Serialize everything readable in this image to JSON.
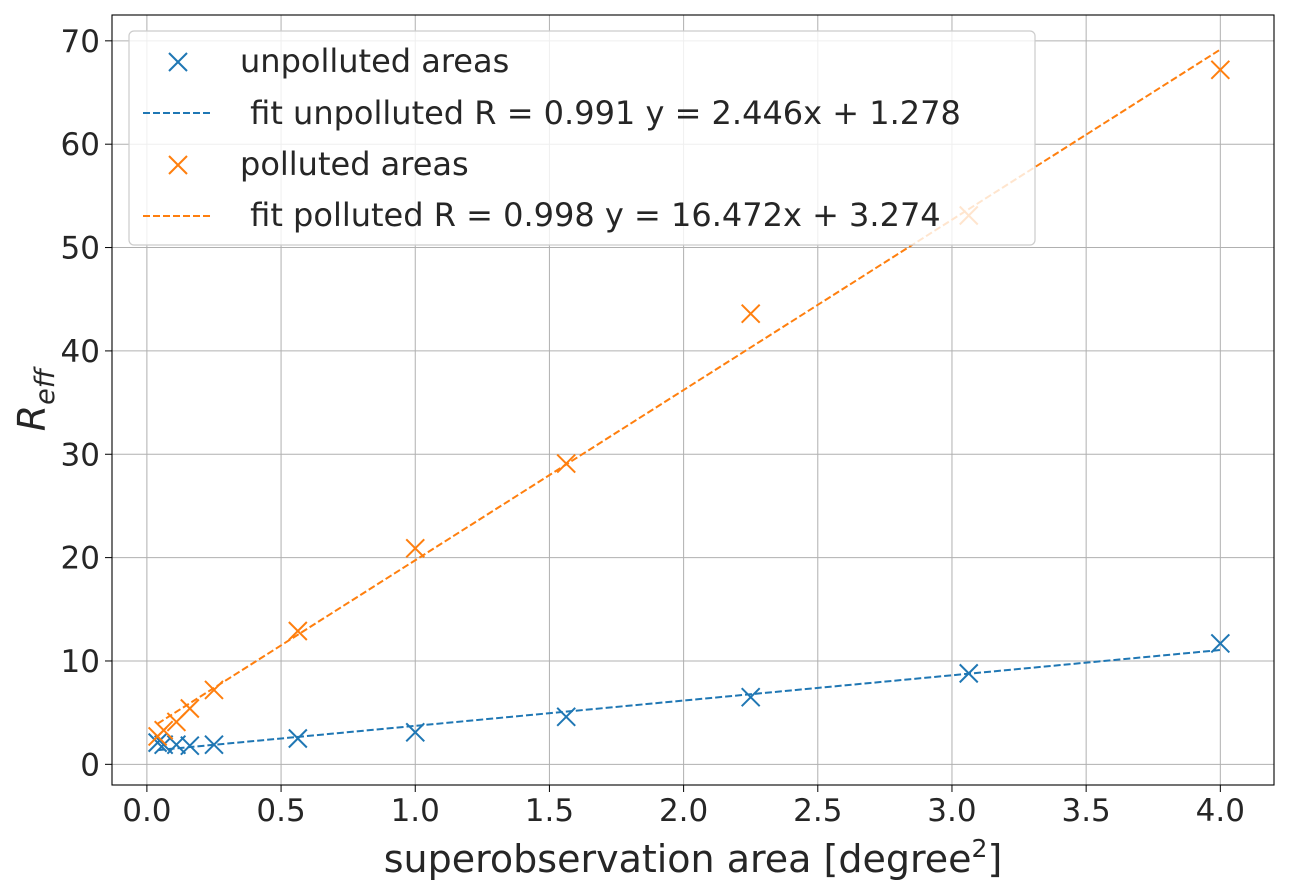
{
  "chart_data": {
    "type": "scatter",
    "xlabel": "superobservation area [degree",
    "xlabel_superscript": "2",
    "xlabel_suffix": "]",
    "ylabel": "R",
    "ylabel_subscript": "eff",
    "xlim": [
      -0.13,
      4.2
    ],
    "ylim": [
      -2,
      72.5
    ],
    "x_ticks": [
      0.0,
      0.5,
      1.0,
      1.5,
      2.0,
      2.5,
      3.0,
      3.5,
      4.0
    ],
    "x_tick_labels": [
      "0.0",
      "0.5",
      "1.0",
      "1.5",
      "2.0",
      "2.5",
      "3.0",
      "3.5",
      "4.0"
    ],
    "y_ticks": [
      0,
      10,
      20,
      30,
      40,
      50,
      60,
      70
    ],
    "y_tick_labels": [
      "0",
      "10",
      "20",
      "30",
      "40",
      "50",
      "60",
      "70"
    ],
    "grid": true,
    "legend_position": "top-left",
    "series": [
      {
        "name": "unpolluted areas",
        "kind": "scatter",
        "marker": "x",
        "color": "#1f77b4",
        "x": [
          0.04,
          0.0625,
          0.11,
          0.16,
          0.25,
          0.5625,
          1.0,
          1.5625,
          2.25,
          3.0625,
          4.0
        ],
        "y": [
          2.1,
          1.9,
          1.9,
          1.8,
          1.9,
          2.5,
          3.1,
          4.6,
          6.5,
          8.8,
          11.7
        ]
      },
      {
        "name": " fit unpolluted R = 0.991 y = 2.446x + 1.278",
        "kind": "fit",
        "color": "#1f77b4",
        "slope": 2.446,
        "intercept": 1.278,
        "x_range": [
          0.04,
          4.0
        ]
      },
      {
        "name": "polluted areas",
        "kind": "scatter",
        "marker": "x",
        "color": "#ff7f0e",
        "x": [
          0.04,
          0.0625,
          0.11,
          0.16,
          0.25,
          0.5625,
          1.0,
          1.5625,
          2.25,
          3.0625,
          4.0
        ],
        "y": [
          2.7,
          3.3,
          4.1,
          5.4,
          7.2,
          12.9,
          20.9,
          29.1,
          43.6,
          53.1,
          67.2
        ]
      },
      {
        "name": " fit polluted R = 0.998 y = 16.472x + 3.274",
        "kind": "fit",
        "color": "#ff7f0e",
        "slope": 16.472,
        "intercept": 3.274,
        "x_range": [
          0.04,
          4.0
        ]
      }
    ]
  }
}
